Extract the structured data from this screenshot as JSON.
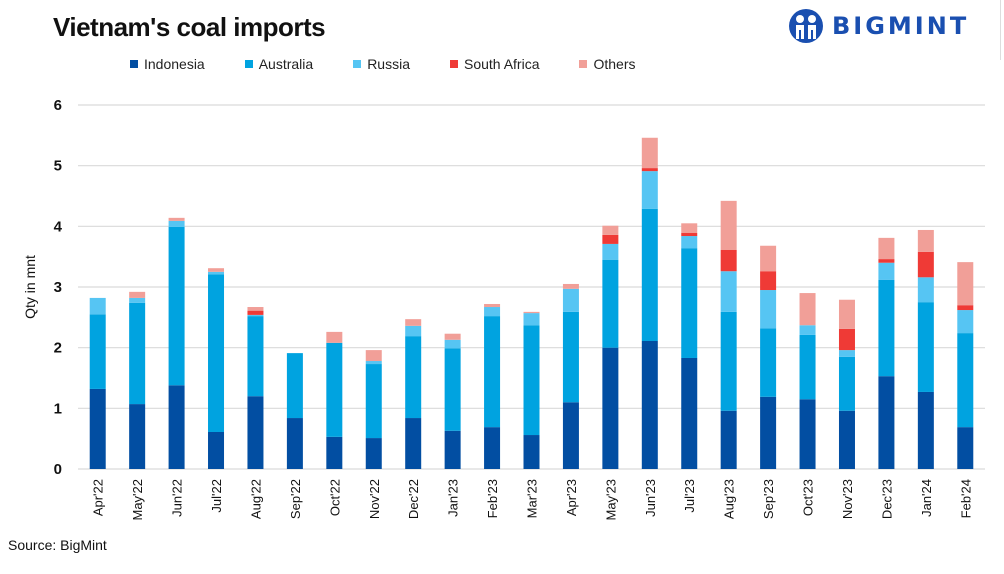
{
  "header": {
    "title": "Vietnam's coal imports",
    "logo_text": "BIGMINT"
  },
  "footer": {
    "source": "Source: BigMint"
  },
  "chart_data": {
    "type": "bar",
    "stacked": true,
    "title": "Vietnam's coal imports",
    "xlabel": "",
    "ylabel": "Qty in mnt",
    "ylim": [
      0,
      6
    ],
    "yticks": [
      0,
      1,
      2,
      3,
      4,
      5,
      6
    ],
    "grid": true,
    "legend_position": "top",
    "categories": [
      "Apr'22",
      "May'22",
      "Jun'22",
      "Jul'22",
      "Aug'22",
      "Sep'22",
      "Oct'22",
      "Nov'22",
      "Dec'22",
      "Jan'23",
      "Feb'23",
      "Mar'23",
      "Apr'23",
      "May'23",
      "Jun'23",
      "Jul'23",
      "Aug'23",
      "Sep'23",
      "Oct'23",
      "Nov'23",
      "Dec'23",
      "Jan'24",
      "Feb'24"
    ],
    "series": [
      {
        "name": "Indonesia",
        "color": "#024ea2",
        "values": [
          1.32,
          1.07,
          1.38,
          0.61,
          1.2,
          0.84,
          0.53,
          0.51,
          0.84,
          0.63,
          0.69,
          0.56,
          1.1,
          2.0,
          2.11,
          1.83,
          0.96,
          1.19,
          1.15,
          0.96,
          1.53,
          1.27,
          0.69
        ]
      },
      {
        "name": "Australia",
        "color": "#00a3e0",
        "values": [
          1.23,
          1.67,
          2.61,
          2.6,
          1.32,
          1.07,
          1.55,
          1.22,
          1.35,
          1.36,
          1.83,
          1.81,
          1.49,
          1.45,
          2.18,
          1.81,
          1.63,
          1.13,
          1.06,
          0.89,
          1.59,
          1.48,
          1.55
        ]
      },
      {
        "name": "Russia",
        "color": "#56c5f3",
        "values": [
          0.27,
          0.08,
          0.1,
          0.04,
          0.02,
          0,
          0,
          0.05,
          0.17,
          0.14,
          0.15,
          0.2,
          0.38,
          0.26,
          0.62,
          0.2,
          0.67,
          0.63,
          0.16,
          0.11,
          0.28,
          0.41,
          0.38
        ]
      },
      {
        "name": "South Africa",
        "color": "#ef3a36",
        "values": [
          0,
          0,
          0,
          0,
          0.07,
          0,
          0,
          0,
          0,
          0,
          0,
          0,
          0,
          0.15,
          0.05,
          0.05,
          0.35,
          0.31,
          0,
          0.35,
          0.06,
          0.42,
          0.08
        ]
      },
      {
        "name": "Others",
        "color": "#f19f98",
        "values": [
          0,
          0.1,
          0.05,
          0.06,
          0.06,
          0,
          0.18,
          0.18,
          0.11,
          0.1,
          0.05,
          0.02,
          0.08,
          0.15,
          0.5,
          0.16,
          0.81,
          0.42,
          0.53,
          0.48,
          0.35,
          0.36,
          0.71
        ]
      }
    ]
  }
}
